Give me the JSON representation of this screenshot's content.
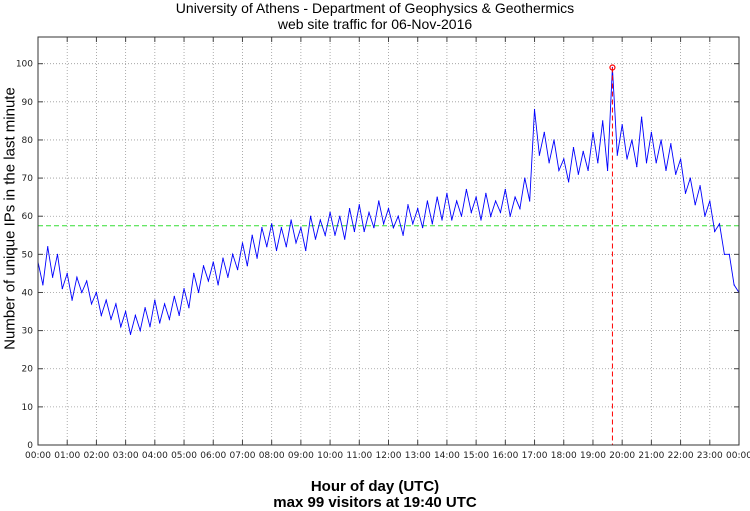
{
  "chart_data": {
    "type": "line",
    "title": "University of Athens - Department of Geophysics & Geothermics",
    "subtitle": "web site traffic for 06-Nov-2016",
    "xlabel": "Hour of day (UTC)",
    "xlabel2": "max 99 visitors at 19:40 UTC",
    "ylabel": "Number of unique IPs in the last minute",
    "xlim": [
      0,
      24
    ],
    "ylim": [
      0,
      107
    ],
    "grid": true,
    "x_tick_labels": [
      "00:00",
      "01:00",
      "02:00",
      "03:00",
      "04:00",
      "05:00",
      "06:00",
      "07:00",
      "08:00",
      "09:00",
      "10:00",
      "11:00",
      "12:00",
      "13:00",
      "14:00",
      "15:00",
      "16:00",
      "17:00",
      "18:00",
      "19:00",
      "20:00",
      "21:00",
      "22:00",
      "23:00",
      "00:00"
    ],
    "y_ticks": [
      0,
      10,
      20,
      30,
      40,
      50,
      60,
      70,
      80,
      90,
      100
    ],
    "sample_interval_minutes": 10,
    "series": [
      {
        "name": "visitors",
        "color": "#0000ff",
        "values": [
          48,
          42,
          52,
          44,
          50,
          41,
          45,
          38,
          44,
          40,
          43,
          37,
          40,
          34,
          38,
          33,
          37,
          31,
          35,
          29,
          34,
          30,
          36,
          31,
          38,
          32,
          37,
          33,
          39,
          34,
          41,
          36,
          45,
          40,
          47,
          43,
          48,
          42,
          49,
          44,
          50,
          46,
          53,
          47,
          55,
          49,
          57,
          52,
          58,
          51,
          57,
          52,
          59,
          53,
          57,
          51,
          60,
          54,
          59,
          55,
          61,
          55,
          60,
          54,
          62,
          56,
          63,
          56,
          61,
          57,
          64,
          58,
          62,
          57,
          60,
          55,
          63,
          58,
          62,
          57,
          64,
          58,
          65,
          59,
          66,
          59,
          64,
          60,
          67,
          61,
          65,
          59,
          66,
          60,
          64,
          61,
          67,
          60,
          65,
          62,
          70,
          64,
          88,
          76,
          82,
          74,
          80,
          72,
          75,
          69,
          78,
          71,
          77,
          72,
          82,
          74,
          85,
          72,
          99,
          76,
          84,
          75,
          80,
          73,
          86,
          74,
          82,
          74,
          80,
          72,
          79,
          71,
          75,
          66,
          70,
          63,
          68,
          60,
          64,
          56,
          58,
          50,
          50,
          42,
          40
        ]
      }
    ],
    "mean_line": {
      "value": 57.5,
      "color": "#33dd33"
    },
    "max_marker": {
      "hour": 19.667,
      "value": 99,
      "color": "#ff0000"
    }
  }
}
